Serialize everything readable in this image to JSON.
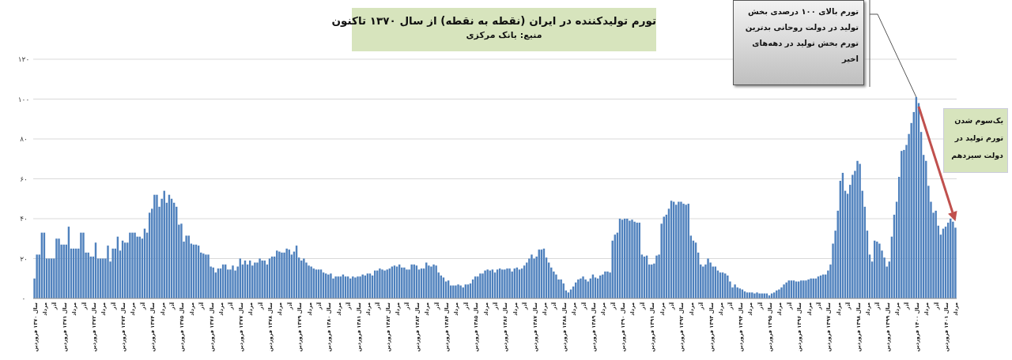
{
  "chart_data": {
    "type": "bar",
    "title": "تورم تولیدکننده در ایران (نقطه به نقطه) از سال ۱۳۷۰ تاکنون",
    "subtitle": "منبع: بانک مرکزی",
    "color": "#4f81bd",
    "grid": "y",
    "ylim": [
      0,
      120
    ],
    "yticks": [
      {
        "value": 0,
        "label": "۰"
      },
      {
        "value": 20,
        "label": "۲۰"
      },
      {
        "value": 40,
        "label": "۴۰"
      },
      {
        "value": 60,
        "label": "۶۰"
      },
      {
        "value": 80,
        "label": "۸۰"
      },
      {
        "value": 100,
        "label": "۱۰۰"
      },
      {
        "value": 120,
        "label": "۱۲۰"
      }
    ],
    "categories": [
      "سال ۱۳۷۰ فروردین",
      null,
      null,
      null,
      "مرداد",
      null,
      null,
      null,
      "آذر",
      null,
      null,
      null,
      "سال ۱۳۷۱ فروردین",
      null,
      null,
      null,
      "مرداد",
      null,
      null,
      null,
      "آذر",
      null,
      null,
      null,
      "سال ۱۳۷۲ فروردین",
      null,
      null,
      null,
      "مرداد",
      null,
      null,
      null,
      "آذر",
      null,
      null,
      null,
      "سال ۱۳۷۳ فروردین",
      null,
      null,
      null,
      "مرداد",
      null,
      null,
      null,
      "آذر",
      null,
      null,
      null,
      "سال ۱۳۷۴ فروردین",
      null,
      null,
      null,
      "مرداد",
      null,
      null,
      null,
      "آذر",
      null,
      null,
      null,
      "سال ۱۳۷۵ فروردین",
      null,
      null,
      null,
      "مرداد",
      null,
      null,
      null,
      "آذر",
      null,
      null,
      null,
      "سال ۱۳۷۶ فروردین",
      null,
      null,
      null,
      "مرداد",
      null,
      null,
      null,
      "آذر",
      null,
      null,
      null,
      "سال ۱۳۷۷ فروردین",
      null,
      null,
      null,
      "مرداد",
      null,
      null,
      null,
      "آذر",
      null,
      null,
      null,
      "سال ۱۳۷۸ فروردین",
      null,
      null,
      null,
      "مرداد",
      null,
      null,
      null,
      "آذر",
      null,
      null,
      null,
      "سال ۱۳۷۹ فروردین",
      null,
      null,
      null,
      "مرداد",
      null,
      null,
      null,
      "آذر",
      null,
      null,
      null,
      "سال ۱۳۸۰ فروردین",
      null,
      null,
      null,
      "مرداد",
      null,
      null,
      null,
      "آذر",
      null,
      null,
      null,
      "سال ۱۳۸۱ فروردین",
      null,
      null,
      null,
      "مرداد",
      null,
      null,
      null,
      "آذر",
      null,
      null,
      null,
      "سال ۱۳۸۲ فروردین",
      null,
      null,
      null,
      "مرداد",
      null,
      null,
      null,
      "آذر",
      null,
      null,
      null,
      "سال ۱۳۸۳ فروردین",
      null,
      null,
      null,
      "مرداد",
      null,
      null,
      null,
      "آذر",
      null,
      null,
      null,
      "سال ۱۳۸۴ فروردین",
      null,
      null,
      null,
      "مرداد",
      null,
      null,
      null,
      "آذر",
      null,
      null,
      null,
      "سال ۱۳۸۵ فروردین",
      null,
      null,
      null,
      "مرداد",
      null,
      null,
      null,
      "آذر",
      null,
      null,
      null,
      "سال ۱۳۸۶ فروردین",
      null,
      null,
      null,
      "مرداد",
      null,
      null,
      null,
      "آذر",
      null,
      null,
      null,
      "سال ۱۳۸۷ فروردین",
      null,
      null,
      null,
      "مرداد",
      null,
      null,
      null,
      "آذر",
      null,
      null,
      null,
      "سال ۱۳۸۸ فروردین",
      null,
      null,
      null,
      "مرداد",
      null,
      null,
      null,
      "آذر",
      null,
      null,
      null,
      "سال ۱۳۸۹ فروردین",
      null,
      null,
      null,
      "مرداد",
      null,
      null,
      null,
      "آذر",
      null,
      null,
      null,
      "سال ۱۳۹۰ فروردین",
      null,
      null,
      null,
      "مرداد",
      null,
      null,
      null,
      "آذر",
      null,
      null,
      null,
      "سال ۱۳۹۱ فروردین",
      null,
      null,
      null,
      "مرداد",
      null,
      null,
      null,
      "آذر",
      null,
      null,
      null,
      "سال ۱۳۹۲ فروردین",
      null,
      null,
      null,
      "مرداد",
      null,
      null,
      null,
      "آذر",
      null,
      null,
      null,
      "سال ۱۳۹۳ فروردین",
      null,
      null,
      null,
      "مرداد",
      null,
      null,
      null,
      "آذر",
      null,
      null,
      null,
      "سال ۱۳۹۴ فروردین",
      null,
      null,
      null,
      "مرداد",
      null,
      null,
      null,
      "آذر",
      null,
      null,
      null,
      "سال ۱۳۹۵ فروردین",
      null,
      null,
      null,
      "مرداد",
      null,
      null,
      null,
      "آذر",
      null,
      null,
      null,
      "سال ۱۳۹۶ فروردین",
      null,
      null,
      null,
      "مرداد",
      null,
      null,
      null,
      "آذر",
      null,
      null,
      null,
      "سال ۱۳۹۷ فروردین",
      null,
      null,
      null,
      "مرداد",
      null,
      null,
      null,
      "آذر",
      null,
      null,
      null,
      "سال ۱۳۹۸ فروردین",
      null,
      null,
      null,
      "مرداد",
      null,
      null,
      null,
      "آذر",
      null,
      null,
      null,
      "سال ۱۳۹۹ فروردین",
      null,
      null,
      null,
      "مرداد",
      null,
      null,
      null,
      "آذر",
      null,
      null,
      null,
      "سال ۱۴۰۰ فروردین",
      null,
      null,
      null,
      "مرداد",
      null,
      null,
      null,
      "آذر",
      null,
      null,
      null,
      "سال ۱۴۰۱ فروردین",
      null,
      null,
      null,
      "مرداد"
    ],
    "values": [
      10,
      22,
      22,
      33,
      33,
      20,
      20,
      20,
      20,
      30,
      30,
      27,
      27,
      27,
      36,
      25,
      25,
      25,
      25,
      33,
      33,
      23,
      23,
      21,
      21,
      28,
      20,
      20,
      20,
      20,
      26.5,
      18.5,
      25,
      25,
      31,
      24,
      29,
      28,
      28,
      33,
      33,
      33,
      31,
      31,
      30,
      35,
      33,
      43,
      45,
      52,
      52,
      46,
      50,
      54,
      48,
      52,
      50,
      48,
      46,
      37,
      37.5,
      28.5,
      31.5,
      31.5,
      27.5,
      27,
      27,
      26.5,
      23,
      22.5,
      22,
      22,
      16,
      15.5,
      13,
      15,
      15,
      17,
      17,
      14.5,
      14.5,
      16.5,
      14,
      16,
      20,
      17,
      19,
      17,
      19,
      16.5,
      18,
      18,
      20,
      19,
      19,
      17,
      20,
      21,
      21,
      24,
      23.5,
      23,
      23,
      25,
      24.5,
      22,
      23.5,
      26.5,
      20.5,
      19,
      20,
      18,
      16.5,
      16,
      15,
      14.5,
      14.5,
      14.5,
      13,
      12.5,
      12,
      12.5,
      10,
      11,
      11,
      11,
      12,
      11,
      11,
      10,
      11,
      10.5,
      11,
      11,
      12,
      11.5,
      12.5,
      12.5,
      11.5,
      14,
      14,
      15,
      14.5,
      14,
      14.5,
      15,
      16,
      16.5,
      16,
      17,
      15.5,
      15.5,
      14.5,
      14.5,
      17,
      17,
      16.5,
      14.5,
      15,
      15,
      18,
      16.5,
      16,
      17,
      16.5,
      13,
      11.5,
      10.5,
      8.5,
      9,
      6.5,
      6.5,
      6.5,
      7,
      6.5,
      5.5,
      7,
      7,
      7.5,
      9.5,
      11,
      11,
      12.5,
      12.5,
      14,
      14.5,
      14,
      14.5,
      13,
      14.5,
      15,
      14.5,
      14.5,
      15,
      15,
      13.5,
      15,
      15.5,
      14.5,
      15,
      16.5,
      18,
      20,
      22,
      20,
      21,
      24.5,
      24.5,
      25,
      20.5,
      18,
      15.5,
      13.5,
      12,
      9.5,
      9.5,
      7.5,
      4,
      3,
      4.5,
      6,
      8,
      9.5,
      10,
      11,
      9.5,
      8.5,
      10,
      12,
      10.5,
      10,
      11.5,
      12,
      13.5,
      13.5,
      13,
      29,
      32,
      33,
      40,
      39.5,
      40,
      40,
      39,
      39.5,
      38.5,
      38,
      38,
      22,
      21,
      21.5,
      17,
      17,
      17.5,
      21.5,
      22,
      37.5,
      41,
      42,
      45,
      49,
      48.5,
      47,
      48.5,
      48.5,
      47.5,
      47,
      47.5,
      31.5,
      29,
      28,
      23,
      17,
      16,
      17,
      20,
      18,
      16,
      16,
      14,
      13,
      13,
      12.5,
      11.5,
      8.5,
      5.5,
      7,
      5.5,
      5,
      4.5,
      3.5,
      3,
      3,
      3,
      2.5,
      3,
      2.5,
      2.5,
      2.5,
      2.5,
      1.5,
      2.5,
      3,
      4,
      4.5,
      5.5,
      7,
      8,
      9,
      9,
      9,
      8.5,
      8.5,
      9,
      9,
      9,
      9.5,
      10,
      10,
      10,
      11,
      11.5,
      12,
      12,
      14,
      17,
      27.5,
      34,
      44,
      59,
      63,
      54,
      52.5,
      57,
      62,
      64,
      69,
      67.5,
      54,
      46,
      34,
      22,
      18.5,
      29,
      28.5,
      27.5,
      24,
      20.5,
      16,
      18.5,
      31,
      42,
      48.5,
      61,
      74,
      74.5,
      77,
      82.5,
      88,
      93.5,
      101,
      98,
      83.5,
      72,
      69,
      56.5,
      48.5,
      43,
      44,
      36.5,
      32,
      35,
      36,
      38,
      40,
      38.5,
      35.5
    ],
    "annotations": [
      "تورم بالای ۱۰۰ درصدی بخش تولید در دولت روحانی بدترین تورم بخش تولید در دهه‌های اخیر",
      "یک‌سوم شدن تورم تولید در دولت سیزدهم"
    ]
  }
}
